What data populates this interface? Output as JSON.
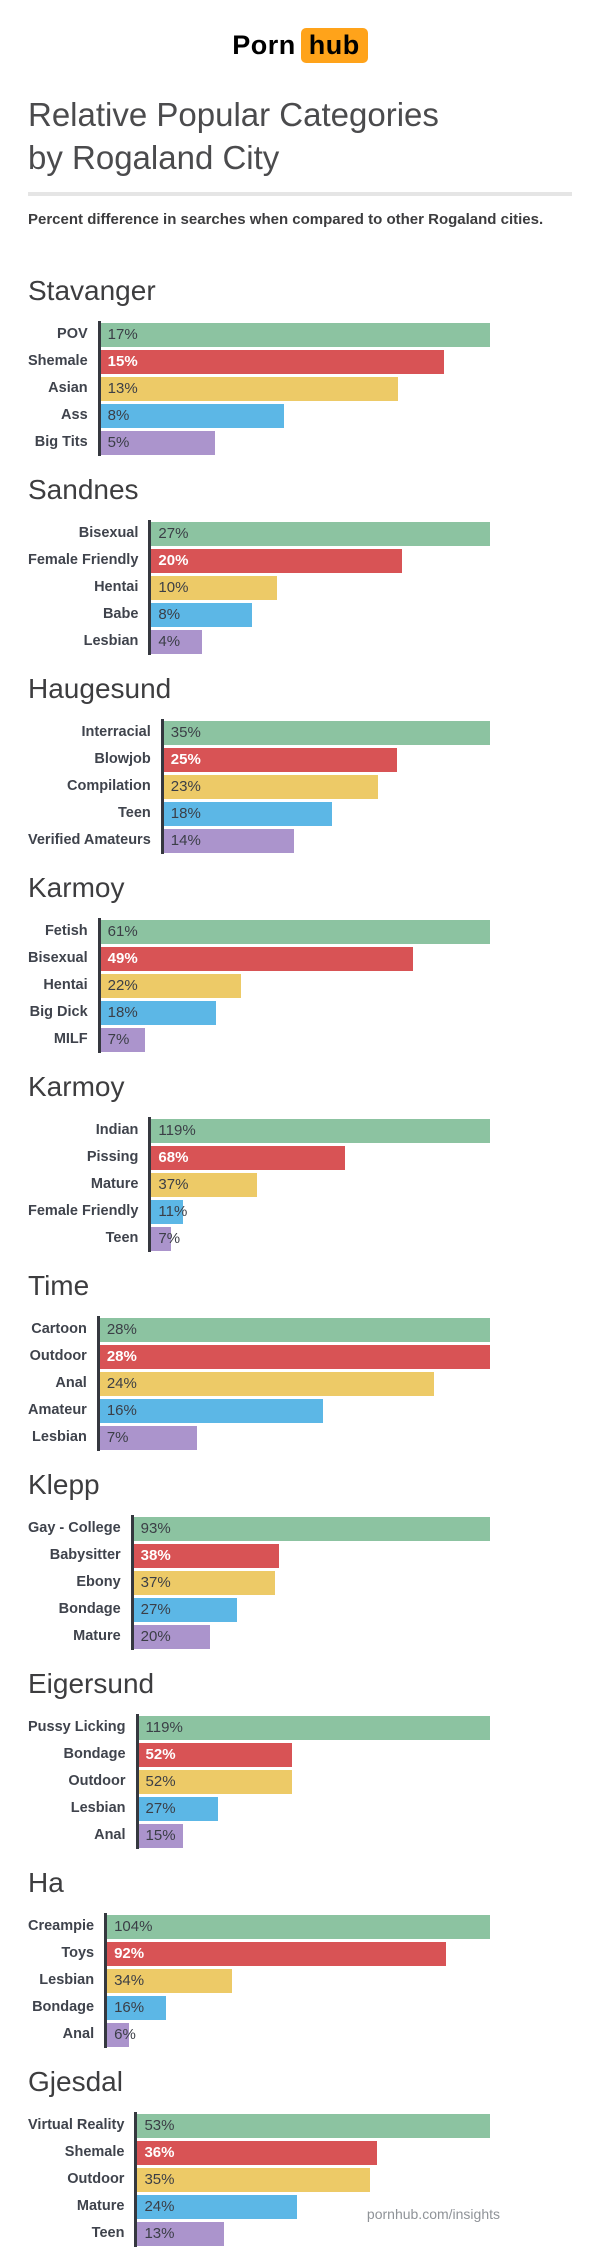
{
  "logo": {
    "porn": "Porn",
    "hub": "hub",
    "orange": "#ffa31a"
  },
  "header": {
    "title_line1": "Relative Popular Categories",
    "title_line2": "by Rogaland City",
    "subtitle": "Percent difference in searches when compared to other Rogaland cities."
  },
  "footer": {
    "text": "pornhub.com/insights"
  },
  "palette": {
    "bar_colors": [
      "#8cc3a1",
      "#d85355",
      "#edca67",
      "#5cb7e6",
      "#ab94cc"
    ],
    "axis_color": "#35383f",
    "value_text_dark": "#3b3e46",
    "value_text_on_red": "#ffffff",
    "white_value_row_index": 1
  },
  "chart_data": [
    {
      "type": "bar",
      "orientation": "horizontal",
      "title": "Stavanger",
      "unit": "%",
      "bar_scale": "relative-to-max",
      "categories": [
        "POV",
        "Shemale",
        "Asian",
        "Ass",
        "Big Tits"
      ],
      "values": [
        17,
        15,
        13,
        8,
        5
      ]
    },
    {
      "type": "bar",
      "orientation": "horizontal",
      "title": "Sandnes",
      "unit": "%",
      "bar_scale": "relative-to-max",
      "categories": [
        "Bisexual",
        "Female Friendly",
        "Hentai",
        "Babe",
        "Lesbian"
      ],
      "values": [
        27,
        20,
        10,
        8,
        4
      ]
    },
    {
      "type": "bar",
      "orientation": "horizontal",
      "title": "Haugesund",
      "unit": "%",
      "bar_scale": "relative-to-max",
      "categories": [
        "Interracial",
        "Blowjob",
        "Compilation",
        "Teen",
        "Verified Amateurs"
      ],
      "values": [
        35,
        25,
        23,
        18,
        14
      ]
    },
    {
      "type": "bar",
      "orientation": "horizontal",
      "title": "Karmoy",
      "unit": "%",
      "bar_scale": "relative-to-max",
      "categories": [
        "Fetish",
        "Bisexual",
        "Hentai",
        "Big Dick",
        "MILF"
      ],
      "values": [
        61,
        49,
        22,
        18,
        7
      ]
    },
    {
      "type": "bar",
      "orientation": "horizontal",
      "title": "Karmoy",
      "unit": "%",
      "bar_scale": "relative-to-max",
      "categories": [
        "Indian",
        "Pissing",
        "Mature",
        "Female Friendly",
        "Teen"
      ],
      "values": [
        119,
        68,
        37,
        11,
        7
      ]
    },
    {
      "type": "bar",
      "orientation": "horizontal",
      "title": "Time",
      "unit": "%",
      "bar_scale": "relative-to-max",
      "categories": [
        "Cartoon",
        "Outdoor",
        "Anal",
        "Amateur",
        "Lesbian"
      ],
      "values": [
        28,
        28,
        24,
        16,
        7
      ]
    },
    {
      "type": "bar",
      "orientation": "horizontal",
      "title": "Klepp",
      "unit": "%",
      "bar_scale": "relative-to-max",
      "categories": [
        "Gay - College",
        "Babysitter",
        "Ebony",
        "Bondage",
        "Mature"
      ],
      "values": [
        93,
        38,
        37,
        27,
        20
      ]
    },
    {
      "type": "bar",
      "orientation": "horizontal",
      "title": "Eigersund",
      "unit": "%",
      "bar_scale": "relative-to-max",
      "categories": [
        "Pussy Licking",
        "Bondage",
        "Outdoor",
        "Lesbian",
        "Anal"
      ],
      "values": [
        119,
        52,
        52,
        27,
        15
      ]
    },
    {
      "type": "bar",
      "orientation": "horizontal",
      "title": "Ha",
      "unit": "%",
      "bar_scale": "relative-to-max",
      "categories": [
        "Creampie",
        "Toys",
        "Lesbian",
        "Bondage",
        "Anal"
      ],
      "values": [
        104,
        92,
        34,
        16,
        6
      ]
    },
    {
      "type": "bar",
      "orientation": "horizontal",
      "title": "Gjesdal",
      "unit": "%",
      "bar_scale": "relative-to-max",
      "categories": [
        "Virtual Reality",
        "Shemale",
        "Outdoor",
        "Mature",
        "Teen"
      ],
      "values": [
        53,
        36,
        35,
        24,
        13
      ]
    }
  ]
}
